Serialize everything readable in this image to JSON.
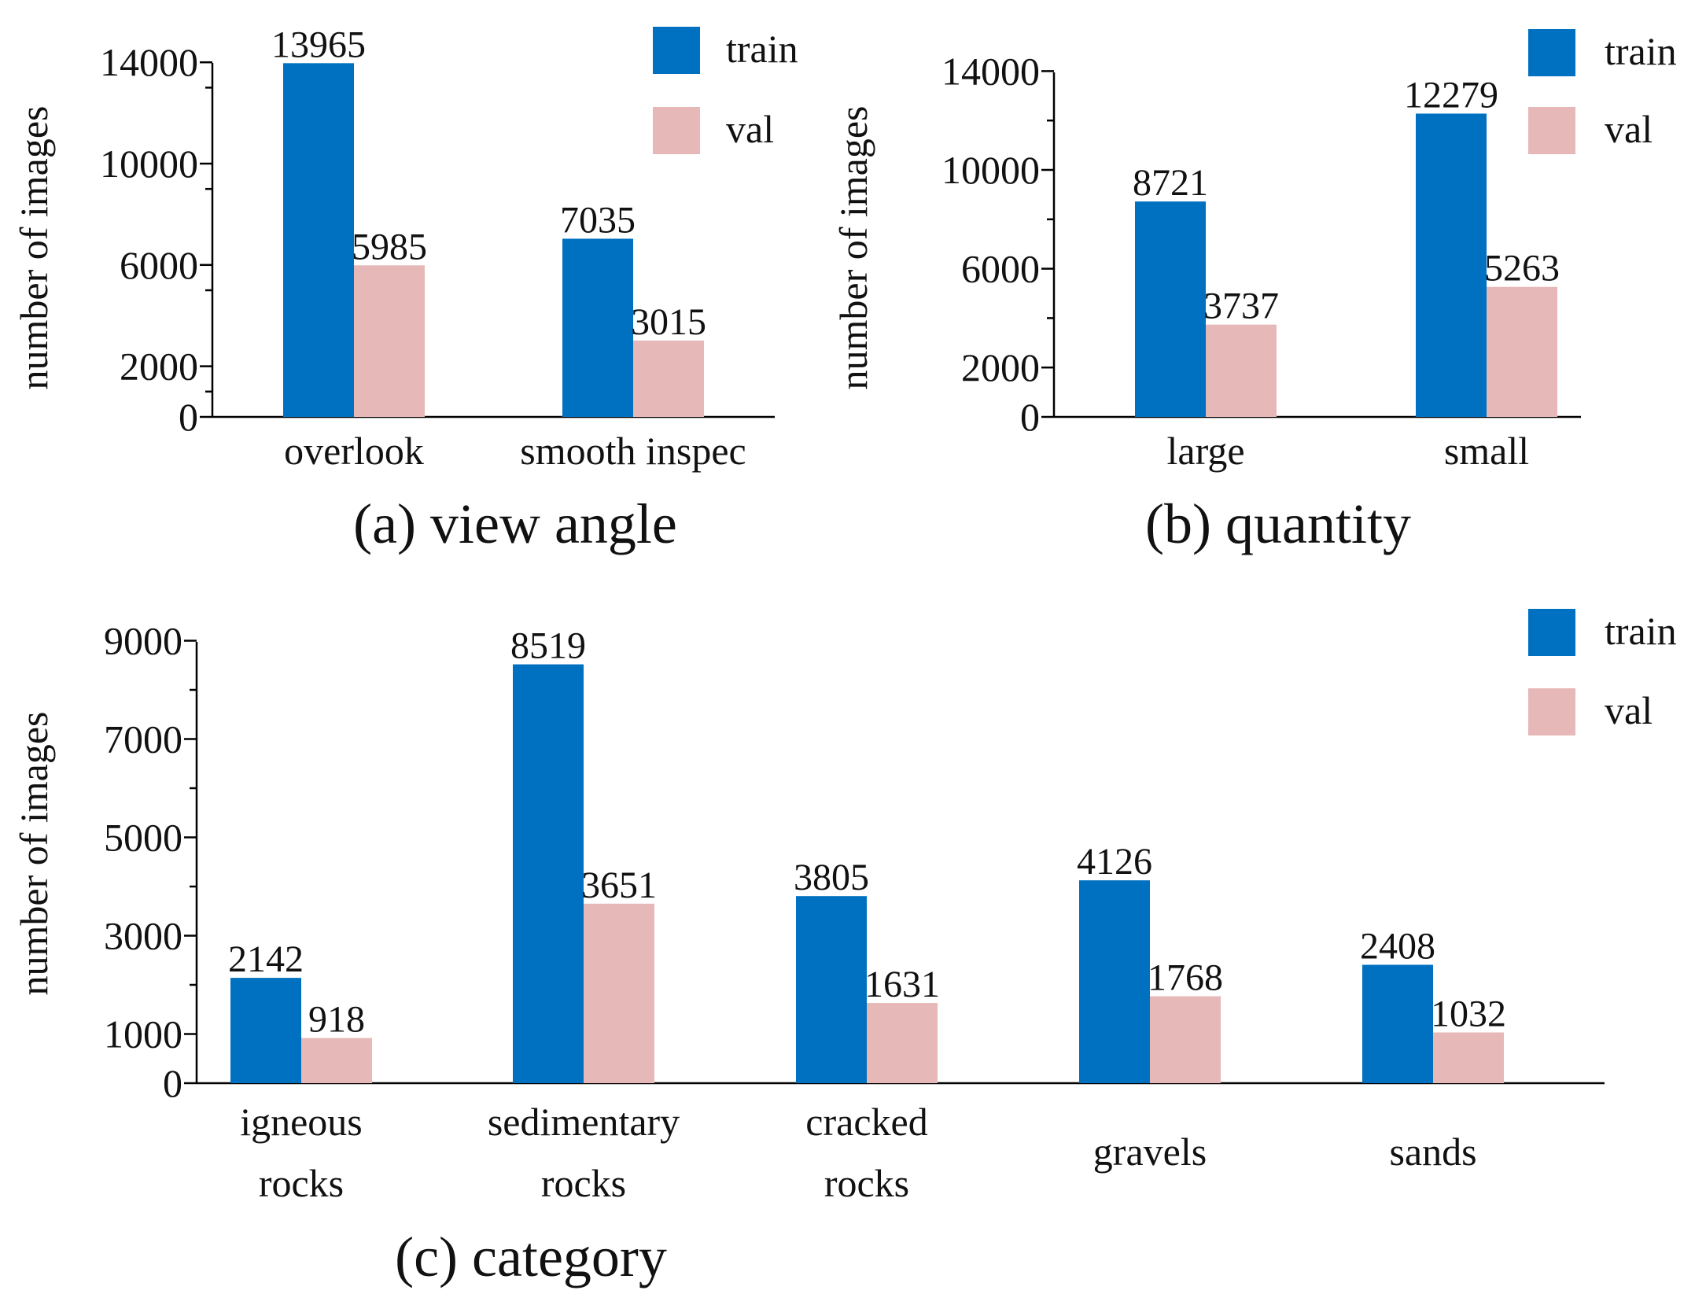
{
  "colors": {
    "train": "#0070C0",
    "val": "#E6B8B7"
  },
  "chart_data": [
    {
      "type": "bar",
      "caption": "(a) view angle",
      "ylabel": "number of images",
      "categories": [
        "overlook",
        "smooth inspec"
      ],
      "series": [
        {
          "name": "train",
          "values": [
            13965,
            7035
          ]
        },
        {
          "name": "val",
          "values": [
            5985,
            3015
          ]
        }
      ],
      "ylim": [
        0,
        14000
      ],
      "yticks": [
        0,
        2000,
        6000,
        10000,
        14000
      ],
      "legend": "top-right"
    },
    {
      "type": "bar",
      "caption": "(b) quantity",
      "ylabel": "number of images",
      "categories": [
        "large",
        "small"
      ],
      "series": [
        {
          "name": "train",
          "values": [
            8721,
            12279
          ]
        },
        {
          "name": "val",
          "values": [
            3737,
            5263
          ]
        }
      ],
      "ylim": [
        0,
        14000
      ],
      "yticks": [
        0,
        2000,
        6000,
        10000,
        14000
      ],
      "legend": "top-right"
    },
    {
      "type": "bar",
      "caption": "(c) category",
      "ylabel": "number of images",
      "categories": [
        [
          "igneous",
          "rocks"
        ],
        [
          "sedimentary",
          "rocks"
        ],
        [
          "cracked",
          "rocks"
        ],
        [
          "gravels"
        ],
        [
          "sands"
        ]
      ],
      "series": [
        {
          "name": "train",
          "values": [
            2142,
            8519,
            3805,
            4126,
            2408
          ]
        },
        {
          "name": "val",
          "values": [
            918,
            3651,
            1631,
            1768,
            1032
          ]
        }
      ],
      "ylim": [
        0,
        9000
      ],
      "yticks": [
        0,
        1000,
        3000,
        5000,
        7000,
        9000
      ],
      "legend": "top-right"
    }
  ]
}
